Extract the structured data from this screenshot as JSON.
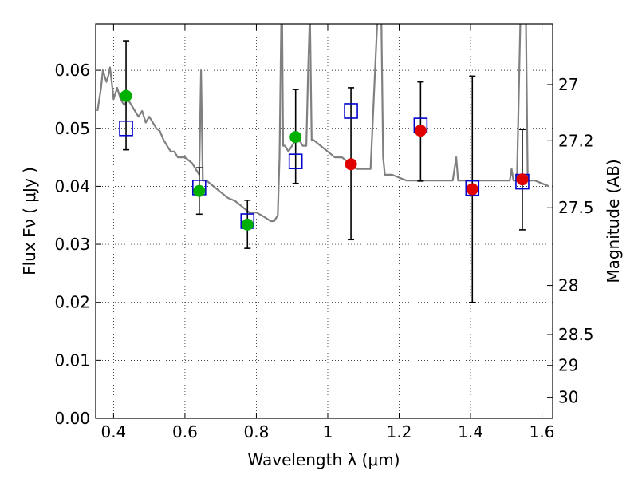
{
  "chart_data": {
    "type": "scatter",
    "title": "",
    "xlabel": "Wavelength  λ (μm)",
    "ylabel": "Flux  Fν  ( μJy )",
    "y2label": "Magnitude (AB)",
    "xlim": [
      0.35,
      1.63
    ],
    "ylim": [
      0.0,
      0.068
    ],
    "grid": true,
    "colors": {
      "spectrum": "#808080",
      "green_points": "#00b000",
      "red_points": "#e00000",
      "squares": "#0000cc",
      "errorbars": "#000000"
    },
    "x_ticks": [
      "0.4",
      "0.6",
      "0.8",
      "1",
      "1.2",
      "1.4",
      "1.6"
    ],
    "x_tick_values": [
      0.4,
      0.6,
      0.8,
      1.0,
      1.2,
      1.4,
      1.6
    ],
    "y_ticks": [
      "0.00",
      "0.01",
      "0.02",
      "0.03",
      "0.04",
      "0.05",
      "0.06"
    ],
    "y_tick_values": [
      0.0,
      0.01,
      0.02,
      0.03,
      0.04,
      0.05,
      0.06
    ],
    "y2_ticks": [
      "27",
      "27.2",
      "27.5",
      "28",
      "28.5",
      "29",
      "30"
    ],
    "y2_tick_values": [
      27,
      27.2,
      27.5,
      28,
      28.5,
      29,
      30
    ],
    "spectrum": {
      "x": [
        0.355,
        0.36,
        0.365,
        0.37,
        0.375,
        0.38,
        0.385,
        0.39,
        0.395,
        0.4,
        0.41,
        0.42,
        0.43,
        0.44,
        0.45,
        0.46,
        0.47,
        0.48,
        0.49,
        0.5,
        0.51,
        0.52,
        0.53,
        0.54,
        0.55,
        0.56,
        0.57,
        0.58,
        0.6,
        0.62,
        0.64,
        0.645,
        0.65,
        0.652,
        0.655,
        0.66,
        0.68,
        0.7,
        0.72,
        0.74,
        0.76,
        0.78,
        0.8,
        0.82,
        0.84,
        0.85,
        0.86,
        0.865,
        0.87,
        0.872,
        0.875,
        0.88,
        0.89,
        0.9,
        0.91,
        0.92,
        0.93,
        0.94,
        0.945,
        0.95,
        0.955,
        0.96,
        0.98,
        1.0,
        1.02,
        1.04,
        1.06,
        1.08,
        1.1,
        1.12,
        1.14,
        1.145,
        1.15,
        1.155,
        1.16,
        1.18,
        1.2,
        1.22,
        1.25,
        1.3,
        1.33,
        1.35,
        1.36,
        1.365,
        1.37,
        1.4,
        1.45,
        1.5,
        1.51,
        1.515,
        1.52,
        1.53,
        1.54,
        1.545,
        1.55,
        1.555,
        1.56,
        1.58,
        1.6,
        1.62
      ],
      "y": [
        0.053,
        0.055,
        0.057,
        0.06,
        0.059,
        0.058,
        0.059,
        0.0605,
        0.058,
        0.055,
        0.057,
        0.055,
        0.054,
        0.055,
        0.054,
        0.053,
        0.052,
        0.053,
        0.051,
        0.052,
        0.051,
        0.05,
        0.0495,
        0.048,
        0.047,
        0.046,
        0.046,
        0.045,
        0.045,
        0.044,
        0.042,
        0.06,
        0.041,
        0.041,
        0.041,
        0.041,
        0.04,
        0.039,
        0.038,
        0.0375,
        0.0365,
        0.0355,
        0.0355,
        0.0348,
        0.034,
        0.034,
        0.035,
        0.045,
        0.07,
        0.07,
        0.047,
        0.047,
        0.046,
        0.047,
        0.048,
        0.048,
        0.047,
        0.047,
        0.06,
        0.07,
        0.048,
        0.048,
        0.047,
        0.046,
        0.045,
        0.045,
        0.044,
        0.043,
        0.043,
        0.043,
        0.07,
        0.07,
        0.07,
        0.045,
        0.042,
        0.042,
        0.0415,
        0.041,
        0.041,
        0.041,
        0.041,
        0.041,
        0.045,
        0.041,
        0.041,
        0.041,
        0.041,
        0.041,
        0.041,
        0.043,
        0.041,
        0.041,
        0.07,
        0.07,
        0.07,
        0.07,
        0.041,
        0.041,
        0.0405,
        0.04
      ]
    },
    "series": [
      {
        "marker": "green-circle",
        "x": [
          0.435,
          0.64,
          0.775,
          0.91
        ],
        "y": [
          0.0556,
          0.0392,
          0.0334,
          0.0485
        ]
      },
      {
        "marker": "red-circle",
        "x": [
          1.065,
          1.26,
          1.405,
          1.545
        ],
        "y": [
          0.0438,
          0.0496,
          0.0395,
          0.0412
        ]
      },
      {
        "marker": "blue-square-errorbar",
        "x": [
          0.435,
          0.64,
          0.775,
          0.91,
          1.065,
          1.26,
          1.405,
          1.545
        ],
        "y": [
          0.05,
          0.0398,
          0.034,
          0.0443,
          0.053,
          0.0505,
          0.0397,
          0.0408
        ],
        "yerr_low": [
          0.0463,
          0.0352,
          0.0293,
          0.0405,
          0.0308,
          0.0409,
          0.02,
          0.0325
        ],
        "yerr_high": [
          0.0651,
          0.0432,
          0.0376,
          0.0567,
          0.057,
          0.058,
          0.059,
          0.0498
        ]
      }
    ]
  }
}
